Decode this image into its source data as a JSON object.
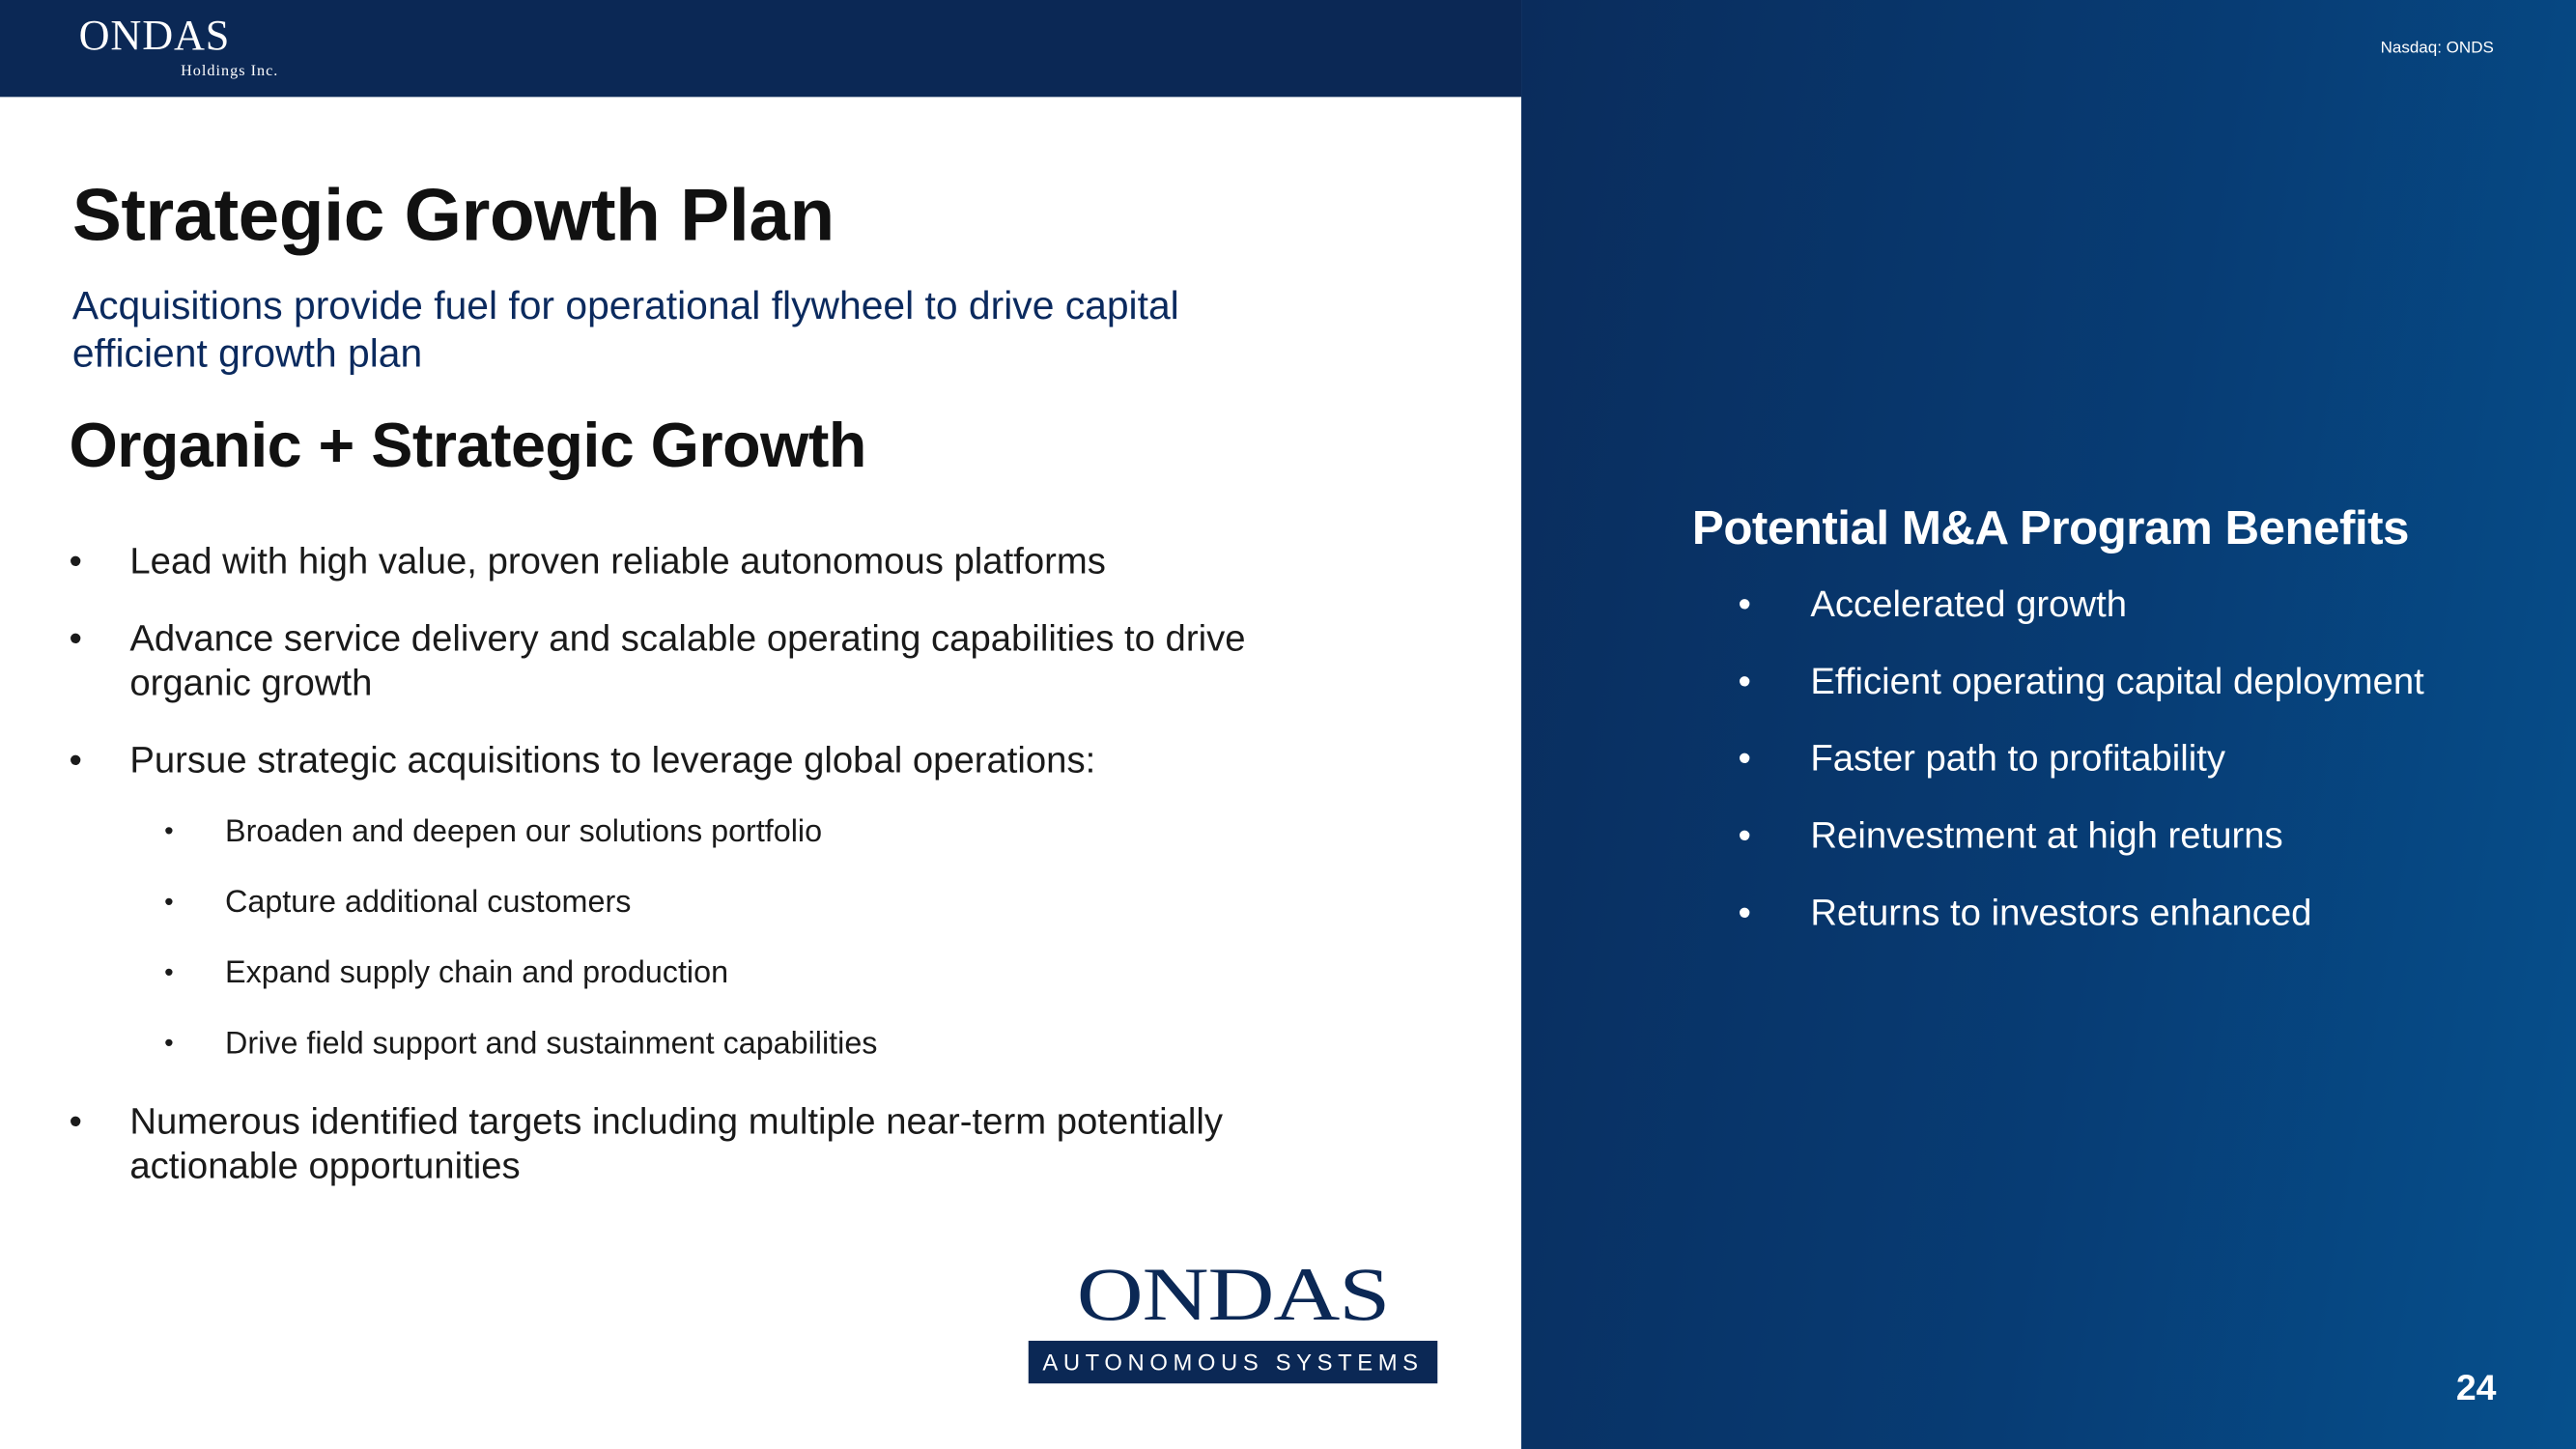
{
  "header": {
    "logo_main": "ONDAS",
    "logo_sub": "Holdings Inc.",
    "ticker": "Nasdaq: ONDS"
  },
  "left": {
    "title": "Strategic Growth Plan",
    "subtitle": "Acquisitions provide fuel for operational flywheel to drive capital efficient growth plan",
    "section_title": "Organic + Strategic Growth",
    "bullets": [
      "Lead with high value, proven reliable autonomous platforms",
      "Advance service delivery and scalable operating capabilities to drive organic growth",
      "Pursue strategic acquisitions to leverage global operations:",
      "Numerous identified targets including multiple near-term potentially actionable opportunities"
    ],
    "sub_bullets": [
      "Broaden and deepen our solutions portfolio",
      "Capture additional customers",
      "Expand supply chain and production",
      "Drive field support and sustainment capabilities"
    ],
    "bottom_logo": {
      "main": "ONDAS",
      "band": "AUTONOMOUS SYSTEMS"
    }
  },
  "right": {
    "title": "Potential M&A Program Benefits",
    "bullets": [
      "Accelerated growth",
      "Efficient operating capital deployment",
      "Faster path to profitability",
      "Reinvestment at high returns",
      "Returns to investors enhanced"
    ]
  },
  "bullet_char": "•",
  "page_number": "24",
  "colors": {
    "navy": "#0b2855",
    "accent_text": "#0b2a5e",
    "panel_gradient_end": "#06508d"
  }
}
